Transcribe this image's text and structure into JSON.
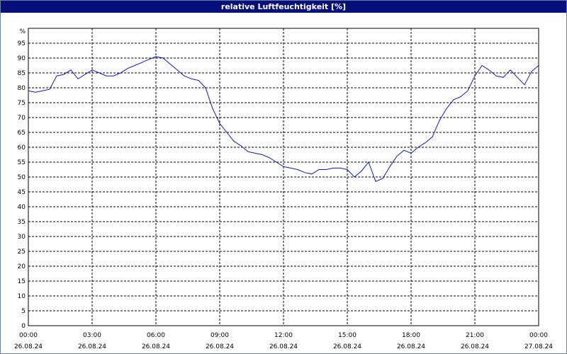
{
  "colors": {
    "title_bar": "#070f7a",
    "line": "#0b18c8",
    "grid": "#000000",
    "border": "#6b7f9e"
  },
  "chart_data": {
    "type": "line",
    "title": "relative Luftfeuchtigkeit [%]",
    "y_unit_label": "%",
    "xlabel": "",
    "ylabel": "",
    "ylim": [
      0,
      100
    ],
    "y_ticks": [
      0,
      5,
      10,
      15,
      20,
      25,
      30,
      35,
      40,
      45,
      50,
      55,
      60,
      65,
      70,
      75,
      80,
      85,
      90,
      95
    ],
    "xlim_hours": [
      0,
      24
    ],
    "x_ticks": [
      {
        "time": "00:00",
        "date": "26.08.24"
      },
      {
        "time": "03:00",
        "date": "26.08.24"
      },
      {
        "time": "06:00",
        "date": "26.08.24"
      },
      {
        "time": "09:00",
        "date": "26.08.24"
      },
      {
        "time": "12:00",
        "date": "26.08.24"
      },
      {
        "time": "15:00",
        "date": "26.08.24"
      },
      {
        "time": "18:00",
        "date": "26.08.24"
      },
      {
        "time": "21:00",
        "date": "26.08.24"
      },
      {
        "time": "00:00",
        "date": "27.08.24"
      }
    ],
    "grid": "dashed",
    "series": [
      {
        "time_of_day": [
          "00:00",
          "00:20",
          "00:40",
          "01:00",
          "01:20",
          "01:40",
          "02:00",
          "02:20",
          "02:40",
          "03:00",
          "03:20",
          "03:40",
          "04:00",
          "04:20",
          "04:40",
          "05:00",
          "05:20",
          "05:40",
          "06:00",
          "06:20",
          "06:40",
          "07:00",
          "07:20",
          "07:40",
          "08:00",
          "08:20",
          "08:40",
          "09:00",
          "09:20",
          "09:40",
          "10:00",
          "10:20",
          "10:40",
          "11:00",
          "11:20",
          "11:40",
          "12:00",
          "12:20",
          "12:40",
          "13:00",
          "13:20",
          "13:40",
          "14:00",
          "14:20",
          "14:40",
          "15:00",
          "15:20",
          "15:40",
          "16:00",
          "16:20",
          "16:40",
          "17:00",
          "17:20",
          "17:40",
          "18:00",
          "18:20",
          "18:40",
          "19:00",
          "19:20",
          "19:40",
          "20:00",
          "20:20",
          "20:40",
          "21:00",
          "21:20",
          "21:40",
          "22:00",
          "22:20",
          "22:40",
          "23:00",
          "23:20",
          "23:40",
          "24:00"
        ],
        "values": [
          79,
          78.5,
          79,
          79.5,
          84,
          84.5,
          86,
          83,
          84.5,
          86,
          85,
          84,
          84,
          85,
          86.5,
          87.5,
          88.5,
          89.5,
          90.5,
          90,
          88,
          86,
          84,
          83,
          82.5,
          80,
          73,
          68,
          65,
          62,
          60.5,
          58.5,
          58,
          57.5,
          56.5,
          55,
          53.5,
          53,
          52.5,
          51.5,
          51,
          52.5,
          52.5,
          53,
          53,
          52.5,
          50,
          52,
          55,
          48.5,
          49.5,
          53.5,
          57,
          59,
          58,
          60,
          61.5,
          63.5,
          69,
          73,
          76,
          77,
          79,
          84,
          87.5,
          86,
          84,
          83.5,
          86,
          83.5,
          81,
          85.5,
          87.5
        ]
      }
    ]
  }
}
